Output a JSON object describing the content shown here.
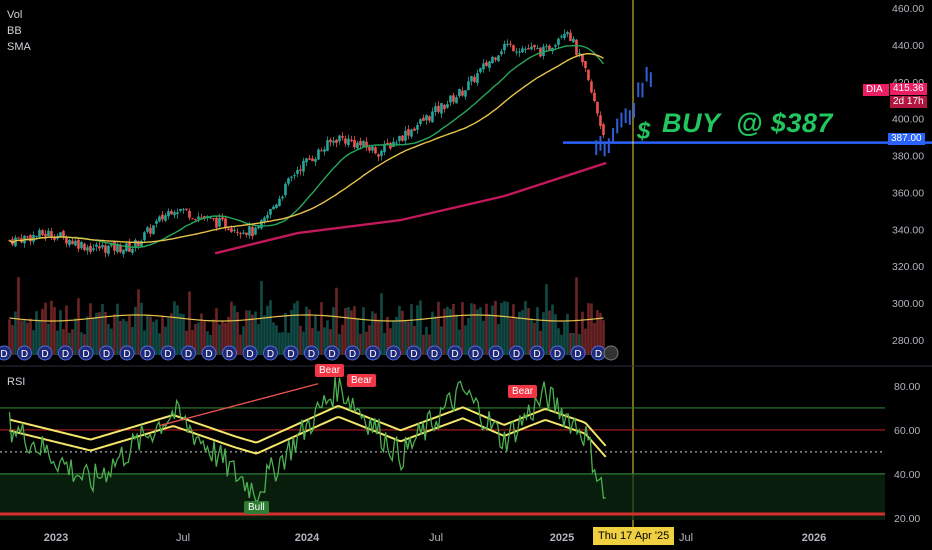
{
  "legend": {
    "vol": "Vol",
    "bb": "BB",
    "sma": "SMA",
    "rsi": "RSI"
  },
  "price_axis": {
    "ticks": [
      "460.00",
      "440.00",
      "420.00",
      "400.00",
      "380.00",
      "360.00",
      "340.00",
      "320.00",
      "300.00",
      "280.00"
    ]
  },
  "rsi_axis": {
    "ticks": [
      "80.00",
      "60.00",
      "40.00",
      "20.00"
    ]
  },
  "time_axis": {
    "ticks": [
      "2023",
      "Jul",
      "2024",
      "Jul",
      "2025",
      "Jul",
      "2026"
    ],
    "crosshair_label": "Thu 17 Apr '25"
  },
  "symbol_badge": {
    "ticker": "DIA",
    "price": "415.36",
    "countdown": "2d 17h"
  },
  "buy_level": {
    "label": "387.00",
    "annotation_symbol": "$",
    "annotation_text": "BUY  @ $387"
  },
  "rsi_labels": {
    "bear_1": "Bear",
    "bear_2": "Bear",
    "bear_3": "Bear",
    "bull_1": "Bull"
  },
  "dividend_marker": "D",
  "colors": {
    "up": "#26a69a",
    "down": "#ef5350",
    "sma_long": "#c2185b",
    "bb_basis": "#e6c34a",
    "ema": "#26a65b",
    "buy_line": "#2962ff",
    "buy_text": "#22c55e",
    "crosshair": "#f0d040",
    "rsi_line": "#4caf50",
    "rsi_upper": "#2e7d32",
    "rsi_mid": "#b71c1c"
  },
  "chart_data": {
    "type": "line",
    "title": "",
    "series": [
      {
        "name": "DIA",
        "x": [
          "2022-11",
          "2023-01",
          "2023-03",
          "2023-05",
          "2023-07",
          "2023-09",
          "2023-11",
          "2024-01",
          "2024-03",
          "2024-05",
          "2024-07",
          "2024-09",
          "2024-11",
          "2025-01",
          "2025-02",
          "2025-03",
          "2025-04"
        ],
        "values": [
          334,
          338,
          330,
          330,
          352,
          344,
          338,
          373,
          390,
          382,
          398,
          415,
          440,
          436,
          450,
          425,
          387
        ]
      },
      {
        "name": "SMA 200",
        "x": [
          "2023-09",
          "2024-01",
          "2024-06",
          "2024-11",
          "2025-04"
        ],
        "values": [
          327,
          338,
          345,
          358,
          376
        ]
      }
    ],
    "projection": {
      "x": [
        "2025-04",
        "2025-05",
        "2025-06"
      ],
      "values": [
        387,
        400,
        422
      ]
    },
    "ylim": [
      270,
      462
    ],
    "rsi": {
      "upper": 70,
      "lower": 40,
      "mid": 50,
      "red": 60,
      "x": [
        "2022-11",
        "2023-03",
        "2023-07",
        "2023-10",
        "2023-11",
        "2024-03",
        "2024-06",
        "2024-09",
        "2024-11",
        "2025-01",
        "2025-03",
        "2025-04"
      ],
      "values": [
        62,
        36,
        68,
        40,
        32,
        80,
        48,
        78,
        55,
        76,
        58,
        27
      ],
      "ylim": [
        19,
        85
      ]
    }
  }
}
